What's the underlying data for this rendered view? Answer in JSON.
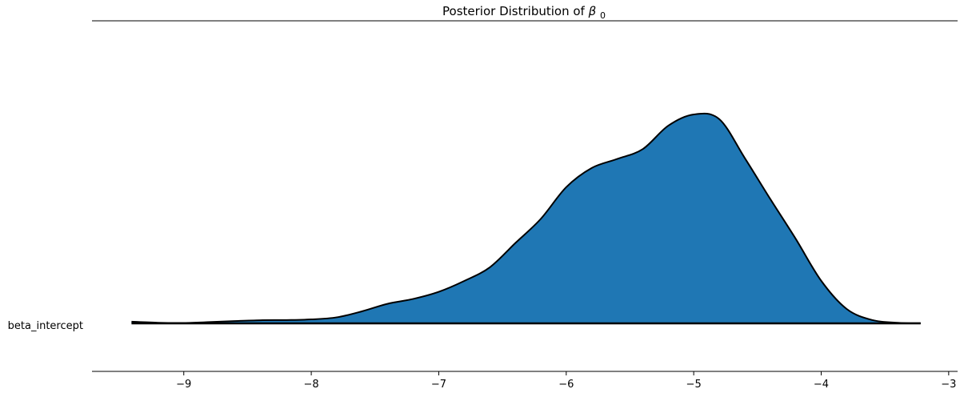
{
  "chart_data": {
    "type": "area",
    "title_prefix": "Posterior Distribution of ",
    "title_symbol": "β",
    "title_subscript": "0",
    "xlabel": "",
    "ylabel": "",
    "variable_label": "beta_intercept",
    "xlim": [
      -9.72,
      -2.93
    ],
    "ylim": [
      0,
      1
    ],
    "x_ticks": [
      -9,
      -8,
      -7,
      -6,
      -5,
      -4,
      -3
    ],
    "x_tick_labels": [
      "−9",
      "−8",
      "−7",
      "−6",
      "−5",
      "−4",
      "−3"
    ],
    "grid": false,
    "fill_color": "#1f77b4",
    "line_color": "#000000",
    "series": [
      {
        "x": [
          -9.41,
          -9.2,
          -9.0,
          -8.8,
          -8.6,
          -8.4,
          -8.2,
          -8.0,
          -7.8,
          -7.6,
          -7.4,
          -7.2,
          -7.0,
          -6.8,
          -6.6,
          -6.4,
          -6.2,
          -6.0,
          -5.8,
          -5.6,
          -5.4,
          -5.2,
          -5.0,
          -4.8,
          -4.6,
          -4.4,
          -4.2,
          -4.0,
          -3.8,
          -3.6,
          -3.4,
          -3.22
        ],
        "y": [
          0.008,
          0.003,
          0.002,
          0.006,
          0.011,
          0.015,
          0.016,
          0.019,
          0.029,
          0.058,
          0.094,
          0.117,
          0.151,
          0.203,
          0.268,
          0.384,
          0.5,
          0.652,
          0.744,
          0.787,
          0.834,
          0.946,
          1.0,
          0.978,
          0.792,
          0.596,
          0.405,
          0.204,
          0.069,
          0.016,
          0.003,
          0.001
        ]
      }
    ]
  }
}
